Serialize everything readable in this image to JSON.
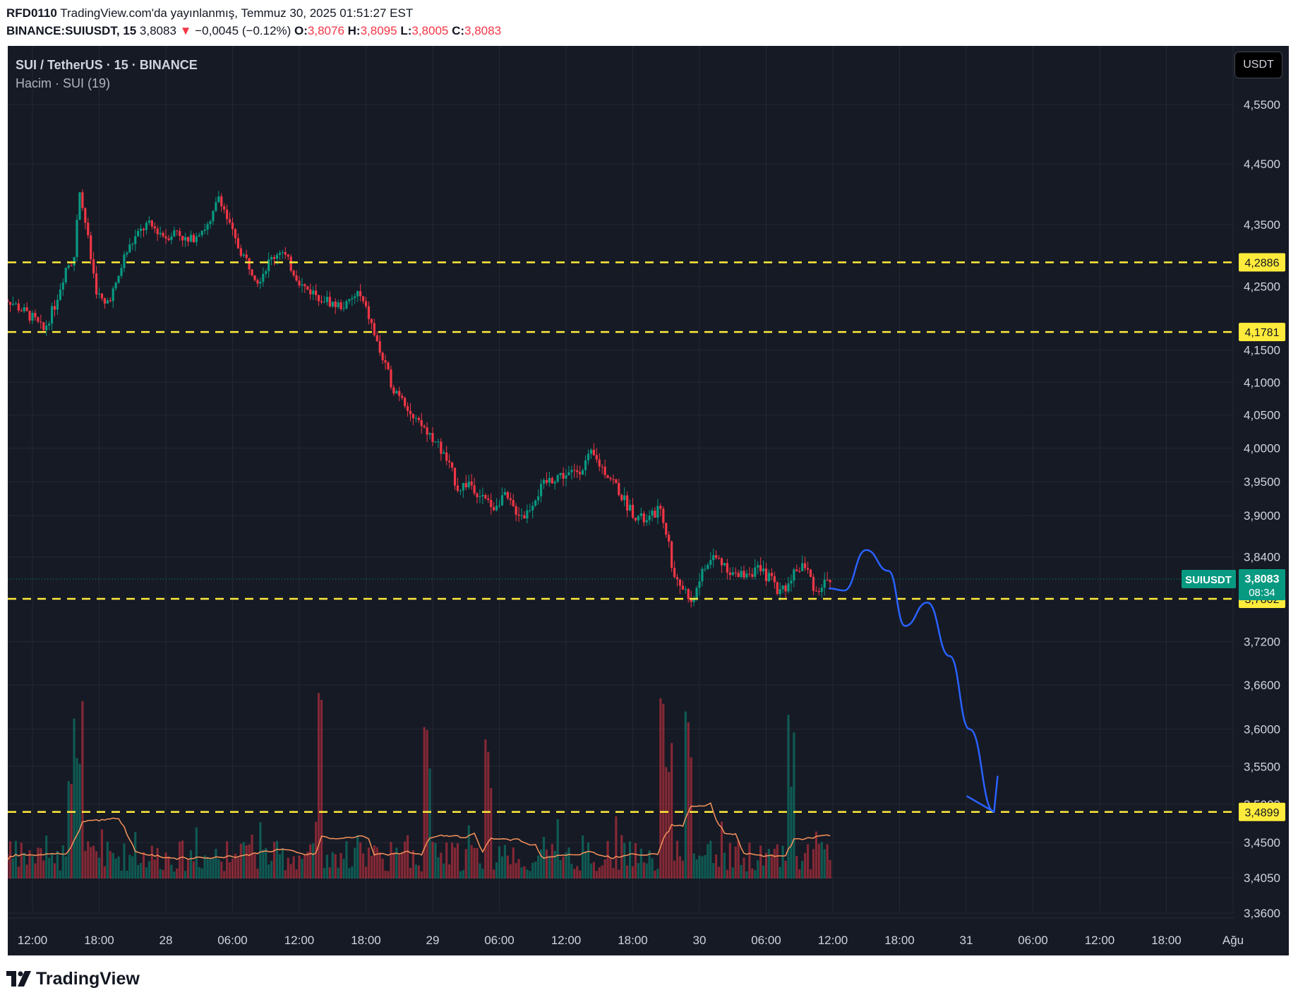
{
  "header": {
    "line1_user": "RFD0110",
    "line1_rest": " TradingView.com'da yayınlanmış, Temmuz 30, 2025 01:51:27 EST",
    "symbol": "BINANCE:SUIUSDT, 15",
    "price": " 3,8083 ",
    "change_arrow": "▼",
    "change": " −0,0045 (−0.12%) ",
    "o_label": "O:",
    "o_value": "3,8076",
    "h_label": " H:",
    "h_value": "3,8095",
    "l_label": " L:",
    "l_value": "3,8005",
    "c_label": " C:",
    "c_value": "3,8083"
  },
  "legend": {
    "symbol": "SUI / TetherUS · 15 · BINANCE",
    "volume": "Hacim · SUI (19)"
  },
  "currency_button": "USDT",
  "footer": {
    "brand": "TradingView",
    "logo_icon": "tradingview-logo-icon"
  },
  "colors": {
    "background": "#161a25",
    "grid": "#242833",
    "up": "#089981",
    "down": "#f23645",
    "level": "#ffeb3b",
    "sketch": "#2962ff",
    "volume_ma": "#f7935b"
  },
  "chart_data": {
    "type": "candlestick",
    "symbol": "BINANCE:SUIUSDT",
    "interval": "15",
    "y_scale": "log",
    "y_range": [
      3.33,
      4.62
    ],
    "y_ticks": [
      "4,5500",
      "4,4500",
      "4,3500",
      "4,2500",
      "4,1500",
      "4,1000",
      "4,0500",
      "4,0000",
      "3,9500",
      "3,9000",
      "3,8400",
      "3,7200",
      "3,6600",
      "3,6000",
      "3,5500",
      "3,5000",
      "3,4500",
      "3,4050",
      "3,3600"
    ],
    "x_ticks": [
      "12:00",
      "18:00",
      "28",
      "06:00",
      "12:00",
      "18:00",
      "29",
      "06:00",
      "12:00",
      "18:00",
      "30",
      "06:00",
      "12:00",
      "18:00",
      "31",
      "06:00",
      "12:00",
      "18:00",
      "Ağu"
    ],
    "x_range_hours": "27 Temmuz 09:00 – 1 Ağustos 00:00",
    "last_price": {
      "symbol": "SUIUSDT",
      "value": 3.8083,
      "label": "3,8083",
      "countdown": "08:34"
    },
    "horizontal_levels": [
      {
        "value": 4.2886,
        "label": "4,2886"
      },
      {
        "value": 4.1781,
        "label": "4,1781"
      },
      {
        "value": 3.7802,
        "label": "3,7802"
      },
      {
        "value": 3.4899,
        "label": "3,4899"
      }
    ],
    "price_path": {
      "description": "approximate close anchors by time (hours since 27 Jul 12:00)",
      "points": [
        [
          -3,
          4.24
        ],
        [
          -1.5,
          4.22
        ],
        [
          0,
          4.2
        ],
        [
          1,
          4.18
        ],
        [
          2,
          4.22
        ],
        [
          3,
          4.28
        ],
        [
          3.8,
          4.3
        ],
        [
          4.2,
          4.4
        ],
        [
          4.8,
          4.35
        ],
        [
          5.2,
          4.3
        ],
        [
          5.8,
          4.24
        ],
        [
          6.5,
          4.22
        ],
        [
          7.5,
          4.25
        ],
        [
          8.3,
          4.3
        ],
        [
          9.3,
          4.33
        ],
        [
          10.3,
          4.35
        ],
        [
          11.3,
          4.34
        ],
        [
          12,
          4.33
        ],
        [
          13,
          4.34
        ],
        [
          14,
          4.32
        ],
        [
          15,
          4.34
        ],
        [
          16,
          4.35
        ],
        [
          16.8,
          4.4
        ],
        [
          17.5,
          4.36
        ],
        [
          18.3,
          4.32
        ],
        [
          19.3,
          4.29
        ],
        [
          20.3,
          4.26
        ],
        [
          21.3,
          4.29
        ],
        [
          22.3,
          4.31
        ],
        [
          23.3,
          4.28
        ],
        [
          24.3,
          4.25
        ],
        [
          25.3,
          4.24
        ],
        [
          26.3,
          4.23
        ],
        [
          27.3,
          4.22
        ],
        [
          28.3,
          4.22
        ],
        [
          29.3,
          4.24
        ],
        [
          30.3,
          4.2
        ],
        [
          31,
          4.16
        ],
        [
          31.8,
          4.12
        ],
        [
          32.5,
          4.09
        ],
        [
          33.3,
          4.08
        ],
        [
          34.3,
          4.04
        ],
        [
          35.3,
          4.03
        ],
        [
          36.3,
          4.01
        ],
        [
          37.3,
          3.98
        ],
        [
          38.3,
          3.94
        ],
        [
          39.3,
          3.95
        ],
        [
          40.3,
          3.93
        ],
        [
          41.3,
          3.91
        ],
        [
          42.3,
          3.93
        ],
        [
          43.3,
          3.91
        ],
        [
          44.3,
          3.9
        ],
        [
          45.3,
          3.93
        ],
        [
          46.3,
          3.95
        ],
        [
          47.3,
          3.96
        ],
        [
          48.3,
          3.96
        ],
        [
          49.3,
          3.97
        ],
        [
          50.3,
          3.99
        ],
        [
          51.3,
          3.97
        ],
        [
          52.3,
          3.95
        ],
        [
          53.3,
          3.92
        ],
        [
          54.3,
          3.9
        ],
        [
          55.3,
          3.89
        ],
        [
          56.3,
          3.91
        ],
        [
          57,
          3.88
        ],
        [
          57.6,
          3.82
        ],
        [
          58.3,
          3.8
        ],
        [
          59.3,
          3.78
        ],
        [
          60.3,
          3.82
        ],
        [
          61.3,
          3.84
        ],
        [
          62.3,
          3.83
        ],
        [
          63.3,
          3.81
        ],
        [
          64.3,
          3.82
        ],
        [
          65.3,
          3.82
        ],
        [
          66.3,
          3.81
        ],
        [
          67.3,
          3.79
        ],
        [
          68.3,
          3.81
        ],
        [
          69.3,
          3.83
        ],
        [
          70,
          3.81
        ],
        [
          70.5,
          3.79
        ],
        [
          71,
          3.8
        ],
        [
          71.8,
          3.8083
        ]
      ]
    },
    "volume": {
      "name": "Hacim · SUI (19)",
      "ma_period": 19,
      "spikes_hours": [
        3.5,
        4.2,
        25.8,
        35.5,
        41,
        56.8,
        57.3,
        59,
        68.3
      ]
    },
    "projection_sketch": {
      "description": "hand-drawn blue path",
      "points": [
        [
          71.7,
          3.795
        ],
        [
          73,
          3.792
        ],
        [
          75,
          3.85
        ],
        [
          77,
          3.82
        ],
        [
          78.5,
          3.742
        ],
        [
          80.5,
          3.775
        ],
        [
          82.5,
          3.7
        ],
        [
          84.3,
          3.6
        ],
        [
          86.5,
          3.49
        ]
      ]
    }
  }
}
